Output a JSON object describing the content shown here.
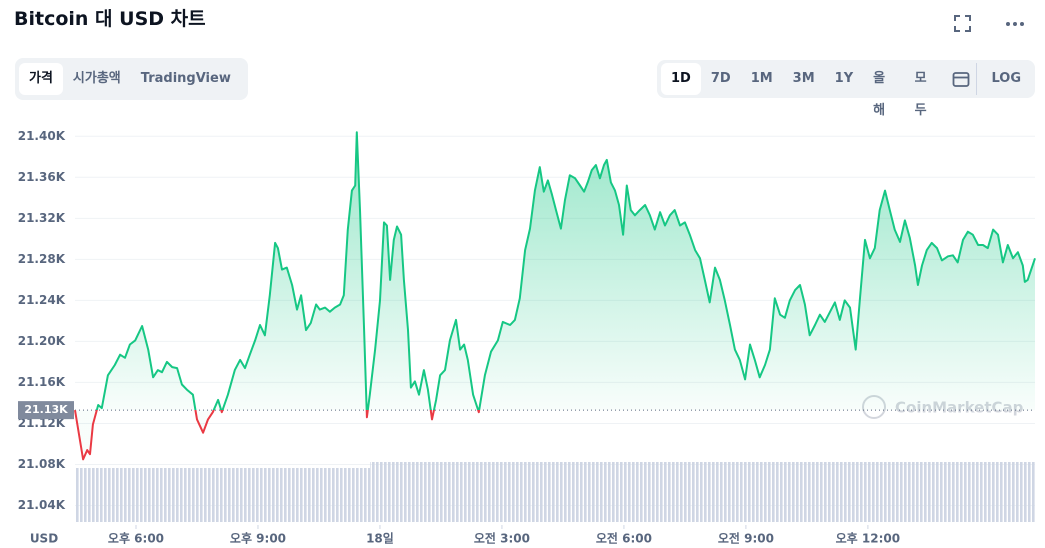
{
  "ui": {
    "title": "Bitcoin 대 USD 차트",
    "tabs": [
      "가격",
      "시가총액",
      "TradingView"
    ],
    "ranges": [
      "1D",
      "7D",
      "1M",
      "3M",
      "1Y",
      "올해",
      "모두"
    ],
    "log": "LOG",
    "watermark": "CoinMarketCap"
  },
  "chart_data": {
    "type": "line",
    "y_label": "USD",
    "color": "#16c784",
    "below_color": "#ea3943",
    "grid": true,
    "xlim": [
      16.5,
      40.11
    ],
    "ylim": [
      21021,
      21411
    ],
    "xticks": [
      {
        "value": 18,
        "label": "오후 6:00"
      },
      {
        "value": 21,
        "label": "오후 9:00"
      },
      {
        "value": 24,
        "label": "18일"
      },
      {
        "value": 27,
        "label": "오전 3:00"
      },
      {
        "value": 30,
        "label": "오전 6:00"
      },
      {
        "value": 33,
        "label": "오전 9:00"
      },
      {
        "value": 36,
        "label": "오후 12:00"
      }
    ],
    "yticks": [
      {
        "value": 21040,
        "label": "21.04K"
      },
      {
        "value": 21080,
        "label": "21.08K"
      },
      {
        "value": 21120,
        "label": "21.12K"
      },
      {
        "value": 21160,
        "label": "21.16K"
      },
      {
        "value": 21200,
        "label": "21.20K"
      },
      {
        "value": 21240,
        "label": "21.24K"
      },
      {
        "value": 21280,
        "label": "21.28K"
      },
      {
        "value": 21320,
        "label": "21.32K"
      },
      {
        "value": 21360,
        "label": "21.36K"
      },
      {
        "value": 21400,
        "label": "21.40K"
      }
    ],
    "reference_line": {
      "value": 21133,
      "label": "21.13K"
    },
    "x": [
      16.5,
      16.62,
      16.7,
      16.8,
      16.87,
      16.94,
      17.07,
      17.16,
      17.31,
      17.48,
      17.61,
      17.73,
      17.85,
      17.98,
      18.15,
      18.3,
      18.42,
      18.54,
      18.64,
      18.76,
      18.89,
      19.01,
      19.13,
      19.25,
      19.4,
      19.5,
      19.65,
      19.77,
      19.89,
      20.02,
      20.11,
      20.26,
      20.43,
      20.56,
      20.68,
      20.8,
      20.93,
      21.05,
      21.17,
      21.29,
      21.42,
      21.49,
      21.59,
      21.71,
      21.84,
      21.96,
      22.06,
      22.18,
      22.3,
      22.43,
      22.52,
      22.65,
      22.77,
      22.89,
      23.02,
      23.11,
      23.21,
      23.31,
      23.39,
      23.43,
      23.51,
      23.61,
      23.68,
      23.75,
      23.88,
      24.0,
      24.1,
      24.17,
      24.25,
      24.34,
      24.42,
      24.52,
      24.59,
      24.69,
      24.76,
      24.86,
      24.96,
      25.08,
      25.18,
      25.28,
      25.38,
      25.48,
      25.6,
      25.72,
      25.87,
      25.97,
      26.07,
      26.16,
      26.29,
      26.43,
      26.58,
      26.73,
      26.9,
      27.02,
      27.2,
      27.32,
      27.44,
      27.57,
      27.69,
      27.81,
      27.93,
      28.03,
      28.13,
      28.23,
      28.33,
      28.45,
      28.55,
      28.67,
      28.8,
      28.92,
      29.02,
      29.11,
      29.21,
      29.31,
      29.41,
      29.51,
      29.58,
      29.68,
      29.78,
      29.88,
      29.98,
      30.07,
      30.17,
      30.27,
      30.39,
      30.52,
      30.64,
      30.76,
      30.89,
      31.01,
      31.13,
      31.25,
      31.38,
      31.5,
      31.62,
      31.75,
      31.87,
      31.99,
      32.11,
      32.24,
      32.36,
      32.48,
      32.61,
      32.73,
      32.85,
      32.98,
      33.1,
      33.22,
      33.34,
      33.47,
      33.59,
      33.71,
      33.84,
      33.96,
      34.08,
      34.21,
      34.33,
      34.45,
      34.57,
      34.7,
      34.82,
      34.94,
      35.07,
      35.19,
      35.31,
      35.43,
      35.56,
      35.7,
      35.8,
      35.93,
      36.05,
      36.17,
      36.29,
      36.42,
      36.54,
      36.66,
      36.79,
      36.91,
      37.03,
      37.16,
      37.23,
      37.33,
      37.45,
      37.57,
      37.7,
      37.82,
      37.97,
      38.09,
      38.21,
      38.34,
      38.46,
      38.58,
      38.71,
      38.83,
      38.95,
      39.08,
      39.2,
      39.32,
      39.44,
      39.57,
      39.69,
      39.81,
      39.86,
      39.93,
      40.11
    ],
    "values": [
      21133,
      21104,
      21085,
      21094,
      21090,
      21119,
      21138,
      21135,
      21167,
      21177,
      21187,
      21184,
      21197,
      21201,
      21215,
      21192,
      21165,
      21172,
      21170,
      21180,
      21175,
      21174,
      21158,
      21153,
      21148,
      21124,
      21111,
      21124,
      21131,
      21143,
      21131,
      21148,
      21172,
      21182,
      21174,
      21187,
      21201,
      21216,
      21206,
      21245,
      21296,
      21291,
      21270,
      21272,
      21255,
      21231,
      21245,
      21211,
      21218,
      21236,
      21231,
      21233,
      21229,
      21233,
      21236,
      21245,
      21309,
      21347,
      21352,
      21404,
      21328,
      21211,
      21126,
      21148,
      21192,
      21240,
      21316,
      21313,
      21260,
      21299,
      21312,
      21304,
      21260,
      21211,
      21155,
      21161,
      21148,
      21172,
      21153,
      21124,
      21143,
      21167,
      21172,
      21201,
      21221,
      21192,
      21197,
      21182,
      21148,
      21131,
      21167,
      21190,
      21201,
      21219,
      21216,
      21221,
      21242,
      21289,
      21310,
      21347,
      21370,
      21346,
      21357,
      21343,
      21328,
      21310,
      21338,
      21362,
      21359,
      21352,
      21346,
      21355,
      21367,
      21372,
      21359,
      21372,
      21377,
      21355,
      21347,
      21333,
      21304,
      21352,
      21328,
      21323,
      21328,
      21333,
      21323,
      21309,
      21326,
      21313,
      21323,
      21328,
      21313,
      21316,
      21304,
      21289,
      21281,
      21260,
      21238,
      21272,
      21260,
      21240,
      21216,
      21192,
      21182,
      21163,
      21197,
      21182,
      21165,
      21177,
      21192,
      21242,
      21226,
      21223,
      21240,
      21250,
      21255,
      21236,
      21206,
      21216,
      21226,
      21219,
      21229,
      21238,
      21221,
      21240,
      21233,
      21192,
      21240,
      21299,
      21281,
      21291,
      21328,
      21347,
      21328,
      21309,
      21297,
      21318,
      21301,
      21274,
      21255,
      21274,
      21289,
      21296,
      21291,
      21279,
      21283,
      21284,
      21277,
      21299,
      21307,
      21304,
      21294,
      21294,
      21291,
      21309,
      21304,
      21277,
      21294,
      21281,
      21287,
      21274,
      21258,
      21260,
      21281
    ]
  }
}
